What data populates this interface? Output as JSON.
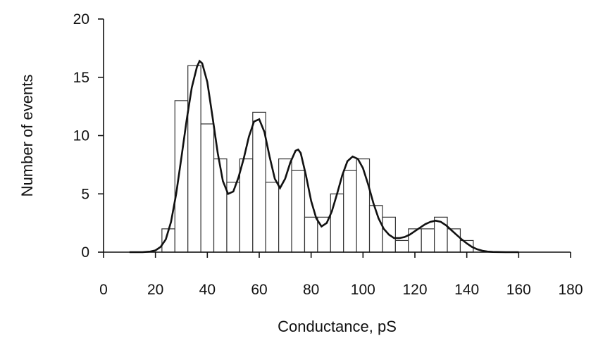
{
  "chart_data": {
    "type": "bar",
    "title": "",
    "xlabel": "Conductance, pS",
    "ylabel": "Number of events",
    "xlim": [
      0,
      180
    ],
    "ylim": [
      0,
      20
    ],
    "x_ticks": [
      0,
      20,
      40,
      60,
      80,
      100,
      120,
      140,
      160,
      180
    ],
    "y_ticks": [
      0,
      5,
      10,
      15,
      20
    ],
    "grid": false,
    "bin_width": 5,
    "bins": [
      {
        "start": 22.5,
        "count": 2
      },
      {
        "start": 27.5,
        "count": 13
      },
      {
        "start": 32.5,
        "count": 16
      },
      {
        "start": 37.5,
        "count": 11
      },
      {
        "start": 42.5,
        "count": 8
      },
      {
        "start": 47.5,
        "count": 6
      },
      {
        "start": 52.5,
        "count": 8
      },
      {
        "start": 57.5,
        "count": 12
      },
      {
        "start": 62.5,
        "count": 6
      },
      {
        "start": 67.5,
        "count": 8
      },
      {
        "start": 72.5,
        "count": 7
      },
      {
        "start": 77.5,
        "count": 3
      },
      {
        "start": 82.5,
        "count": 3
      },
      {
        "start": 87.5,
        "count": 5
      },
      {
        "start": 92.5,
        "count": 7
      },
      {
        "start": 97.5,
        "count": 8
      },
      {
        "start": 102.5,
        "count": 4
      },
      {
        "start": 107.5,
        "count": 3
      },
      {
        "start": 112.5,
        "count": 1
      },
      {
        "start": 117.5,
        "count": 2
      },
      {
        "start": 122.5,
        "count": 2
      },
      {
        "start": 127.5,
        "count": 3
      },
      {
        "start": 132.5,
        "count": 2
      },
      {
        "start": 137.5,
        "count": 1
      }
    ],
    "fit_curve": {
      "x": [
        10,
        15,
        18,
        20,
        22,
        24,
        26,
        28,
        30,
        32,
        34,
        36,
        37,
        38,
        40,
        42,
        44,
        46,
        48,
        50,
        52,
        54,
        56,
        58,
        60,
        62,
        64,
        66,
        68,
        70,
        72,
        74,
        75,
        76,
        78,
        80,
        82,
        84,
        86,
        88,
        90,
        92,
        94,
        96,
        98,
        100,
        102,
        104,
        106,
        108,
        110,
        112,
        114,
        116,
        118,
        120,
        122,
        124,
        126,
        128,
        130,
        132,
        134,
        136,
        138,
        140,
        142,
        144,
        146,
        148,
        150,
        155,
        160
      ],
      "y": [
        0,
        0,
        0.05,
        0.15,
        0.45,
        1.1,
        2.6,
        5.0,
        8.1,
        11.3,
        14.1,
        15.9,
        16.4,
        16.2,
        14.6,
        11.6,
        8.5,
        6.1,
        5.0,
        5.2,
        6.4,
        8.0,
        9.9,
        11.2,
        11.4,
        10.3,
        8.2,
        6.3,
        5.5,
        6.3,
        7.7,
        8.7,
        8.8,
        8.5,
        6.6,
        4.4,
        2.9,
        2.2,
        2.5,
        3.5,
        5.0,
        6.6,
        7.8,
        8.2,
        8.0,
        7.2,
        5.8,
        4.2,
        2.9,
        2.0,
        1.5,
        1.2,
        1.2,
        1.3,
        1.5,
        1.8,
        2.1,
        2.4,
        2.6,
        2.7,
        2.6,
        2.3,
        1.9,
        1.5,
        1.1,
        0.75,
        0.45,
        0.25,
        0.12,
        0.05,
        0.02,
        0,
        0
      ]
    }
  }
}
